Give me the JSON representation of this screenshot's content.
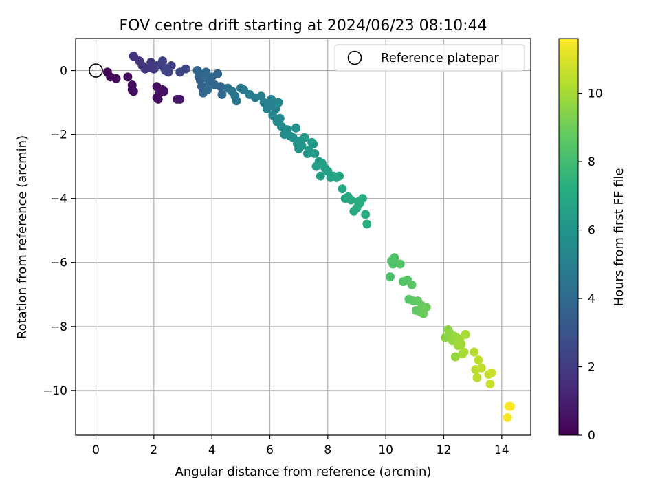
{
  "chart_data": {
    "type": "scatter",
    "title": "FOV centre drift starting at 2024/06/23 08:10:44",
    "xlabel": "Angular distance from reference (arcmin)",
    "ylabel": "Rotation from reference (arcmin)",
    "xlim": [
      -0.7,
      15.0
    ],
    "ylim": [
      -11.4,
      1.0
    ],
    "xticks": [
      0,
      2,
      4,
      6,
      8,
      10,
      12,
      14
    ],
    "yticks": [
      0,
      -2,
      -4,
      -6,
      -8,
      -10
    ],
    "xtick_labels": [
      "0",
      "2",
      "4",
      "6",
      "8",
      "10",
      "12",
      "14"
    ],
    "ytick_labels": [
      "0",
      "−2",
      "−4",
      "−6",
      "−8",
      "−10"
    ],
    "grid": true,
    "legend": {
      "position": "top-right",
      "entries": [
        "Reference platepar"
      ]
    },
    "reference_point": {
      "x": 0,
      "y": 0
    },
    "colorbar": {
      "label": "Hours from first FF file",
      "colormap": "viridis",
      "range": [
        0,
        11.6
      ],
      "ticks": [
        0,
        2,
        4,
        6,
        8,
        10
      ],
      "tick_labels": [
        "0",
        "2",
        "4",
        "6",
        "8",
        "10"
      ]
    },
    "series": [
      {
        "name": "FOV centre drift",
        "x": [
          0.4,
          0.5,
          0.7,
          1.1,
          1.3,
          1.25,
          1.3,
          1.25,
          2.1,
          2.15,
          2.2,
          2.3,
          2.35,
          2.1,
          2.8,
          2.9,
          1.3,
          1.5,
          1.6,
          1.7,
          1.9,
          1.85,
          2.0,
          2.1,
          2.3,
          2.35,
          2.5,
          2.6,
          2.4,
          2.9,
          3.1,
          3.5,
          3.55,
          3.6,
          3.65,
          3.7,
          3.8,
          3.9,
          3.75,
          3.85,
          4.0,
          4.1,
          4.3,
          4.35,
          4.2,
          4.55,
          4.7,
          4.8,
          4.85,
          5.0,
          5.1,
          5.3,
          5.5,
          5.7,
          5.8,
          5.9,
          6.0,
          6.05,
          6.1,
          6.15,
          6.2,
          6.3,
          6.25,
          6.35,
          6.4,
          6.5,
          6.6,
          6.7,
          6.8,
          6.9,
          6.95,
          7.0,
          7.05,
          7.1,
          7.2,
          7.3,
          7.35,
          7.45,
          7.5,
          7.55,
          7.6,
          7.7,
          7.75,
          7.8,
          7.9,
          8.0,
          8.1,
          8.2,
          8.3,
          8.4,
          8.5,
          8.6,
          8.7,
          8.8,
          8.9,
          9.0,
          9.05,
          9.1,
          9.2,
          9.3,
          9.35,
          10.15,
          10.2,
          10.3,
          10.25,
          10.5,
          10.6,
          10.75,
          10.8,
          10.9,
          10.95,
          11.05,
          11.1,
          11.2,
          11.25,
          11.3,
          11.4,
          12.05,
          12.15,
          12.2,
          12.3,
          12.35,
          12.4,
          12.45,
          12.5,
          12.55,
          12.6,
          12.65,
          12.7,
          12.75,
          13.05,
          13.1,
          13.15,
          13.2,
          13.3,
          13.55,
          13.6,
          13.65,
          14.2,
          14.25,
          14.3
        ],
        "y": [
          -0.05,
          -0.2,
          -0.25,
          -0.2,
          0.45,
          -0.45,
          -0.65,
          -0.6,
          -0.5,
          -0.9,
          -0.7,
          -0.6,
          -0.65,
          -0.85,
          -0.9,
          -0.9,
          0.45,
          0.3,
          0.15,
          0.05,
          0.25,
          0.1,
          0.05,
          0.15,
          0.3,
          0.1,
          -0.05,
          0.15,
          0.0,
          -0.05,
          0.05,
          0.0,
          -0.2,
          -0.3,
          -0.5,
          -0.7,
          -0.05,
          -0.35,
          -0.15,
          -0.6,
          -0.2,
          -0.45,
          -0.5,
          -0.75,
          -0.1,
          -0.55,
          -0.65,
          -0.8,
          -0.95,
          -0.55,
          -0.6,
          -0.75,
          -0.85,
          -0.8,
          -1.0,
          -1.2,
          -1.05,
          -0.9,
          -1.4,
          -1.1,
          -1.2,
          -1.0,
          -1.6,
          -1.5,
          -1.75,
          -2.0,
          -1.85,
          -2.05,
          -2.1,
          -1.8,
          -2.3,
          -2.45,
          -2.2,
          -2.35,
          -2.1,
          -2.6,
          -2.5,
          -2.25,
          -2.3,
          -2.6,
          -3.0,
          -2.85,
          -3.3,
          -2.9,
          -3.05,
          -3.15,
          -3.35,
          -3.3,
          -3.35,
          -3.3,
          -3.7,
          -4.0,
          -3.95,
          -4.05,
          -4.4,
          -4.3,
          -4.1,
          -4.15,
          -4.0,
          -4.5,
          -4.8,
          -6.45,
          -5.95,
          -5.85,
          -6.05,
          -6.05,
          -6.6,
          -6.55,
          -7.15,
          -6.7,
          -7.2,
          -7.5,
          -7.2,
          -7.55,
          -7.35,
          -7.6,
          -7.4,
          -8.35,
          -8.1,
          -8.2,
          -8.45,
          -8.3,
          -8.95,
          -8.35,
          -8.6,
          -8.4,
          -8.55,
          -8.85,
          -8.8,
          -8.25,
          -8.8,
          -9.35,
          -9.6,
          -9.05,
          -9.3,
          -9.5,
          -9.8,
          -9.45,
          -10.85,
          -10.5,
          -10.5
        ],
        "hours": [
          0.1,
          0.15,
          0.25,
          0.3,
          1.5,
          0.45,
          0.35,
          0.4,
          0.5,
          0.5,
          0.55,
          0.6,
          0.55,
          0.45,
          0.65,
          0.7,
          1.6,
          1.7,
          1.75,
          1.9,
          1.85,
          1.9,
          2.0,
          2.05,
          2.15,
          2.1,
          2.2,
          2.25,
          2.3,
          2.4,
          2.5,
          3.8,
          3.75,
          3.6,
          3.5,
          3.7,
          3.85,
          3.9,
          3.95,
          4.0,
          3.85,
          3.9,
          3.8,
          3.9,
          3.7,
          4.2,
          4.4,
          4.5,
          4.55,
          4.6,
          4.7,
          4.8,
          4.85,
          4.9,
          4.95,
          5.05,
          5.1,
          5.0,
          5.2,
          5.15,
          5.1,
          5.25,
          5.4,
          5.45,
          5.5,
          5.6,
          5.6,
          5.7,
          5.75,
          5.8,
          5.9,
          5.95,
          6.0,
          6.05,
          6.1,
          6.15,
          6.2,
          6.2,
          6.25,
          6.3,
          6.35,
          6.4,
          6.45,
          6.5,
          6.55,
          6.6,
          6.65,
          6.7,
          6.75,
          6.8,
          6.85,
          6.9,
          6.95,
          7.0,
          7.05,
          7.1,
          7.1,
          7.15,
          7.2,
          7.25,
          7.3,
          8.2,
          8.25,
          8.3,
          8.35,
          8.4,
          8.45,
          8.5,
          8.55,
          8.6,
          8.65,
          8.7,
          8.75,
          8.8,
          8.85,
          8.9,
          8.95,
          9.5,
          9.55,
          9.6,
          9.65,
          9.7,
          9.75,
          9.8,
          9.85,
          9.9,
          9.95,
          10.0,
          10.05,
          10.1,
          10.3,
          10.35,
          10.4,
          10.45,
          10.5,
          10.6,
          10.65,
          10.7,
          11.5,
          11.55,
          11.6
        ]
      }
    ]
  }
}
